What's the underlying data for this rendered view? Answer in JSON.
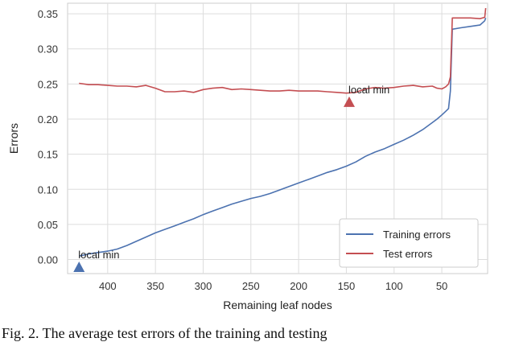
{
  "chart_data": {
    "type": "line",
    "xlabel": "Remaining leaf nodes",
    "ylabel": "Errors",
    "x_reversed": true,
    "xlim": [
      442,
      2
    ],
    "ylim": [
      -0.02,
      0.365
    ],
    "xticks": [
      400,
      350,
      300,
      250,
      200,
      150,
      100,
      50
    ],
    "yticks": [
      0.0,
      0.05,
      0.1,
      0.15,
      0.2,
      0.25,
      0.3,
      0.35
    ],
    "ytick_labels": [
      "0.00",
      "0.05",
      "0.10",
      "0.15",
      "0.20",
      "0.25",
      "0.30",
      "0.35"
    ],
    "grid": true,
    "legend_position": "bottom-right",
    "series": [
      {
        "name": "Training errors",
        "color": "#4c72b0",
        "x": [
          430,
          420,
          410,
          400,
          390,
          380,
          370,
          360,
          350,
          340,
          330,
          320,
          310,
          300,
          290,
          280,
          270,
          260,
          250,
          240,
          230,
          220,
          210,
          200,
          190,
          180,
          170,
          160,
          150,
          140,
          130,
          120,
          110,
          100,
          90,
          80,
          70,
          60,
          55,
          50,
          46,
          43,
          41,
          39,
          30,
          20,
          10,
          5,
          4
        ],
        "values": [
          0.005,
          0.008,
          0.01,
          0.012,
          0.015,
          0.02,
          0.026,
          0.032,
          0.038,
          0.043,
          0.048,
          0.053,
          0.058,
          0.064,
          0.069,
          0.074,
          0.079,
          0.083,
          0.087,
          0.09,
          0.094,
          0.099,
          0.104,
          0.109,
          0.114,
          0.119,
          0.124,
          0.128,
          0.133,
          0.139,
          0.147,
          0.153,
          0.158,
          0.164,
          0.17,
          0.177,
          0.185,
          0.195,
          0.2,
          0.206,
          0.211,
          0.215,
          0.24,
          0.328,
          0.33,
          0.332,
          0.334,
          0.34,
          0.344
        ]
      },
      {
        "name": "Test errors",
        "color": "#c44e52",
        "x": [
          430,
          420,
          410,
          400,
          390,
          380,
          370,
          360,
          350,
          340,
          330,
          320,
          310,
          300,
          290,
          280,
          270,
          260,
          250,
          240,
          230,
          220,
          210,
          200,
          190,
          180,
          170,
          160,
          150,
          140,
          130,
          120,
          110,
          100,
          90,
          80,
          70,
          60,
          55,
          50,
          46,
          43,
          41,
          39,
          30,
          20,
          10,
          5,
          4
        ],
        "values": [
          0.251,
          0.249,
          0.249,
          0.248,
          0.247,
          0.247,
          0.246,
          0.248,
          0.244,
          0.239,
          0.239,
          0.24,
          0.238,
          0.242,
          0.244,
          0.245,
          0.242,
          0.243,
          0.242,
          0.241,
          0.24,
          0.24,
          0.241,
          0.24,
          0.24,
          0.24,
          0.239,
          0.238,
          0.237,
          0.238,
          0.243,
          0.245,
          0.244,
          0.245,
          0.247,
          0.248,
          0.246,
          0.247,
          0.244,
          0.243,
          0.246,
          0.25,
          0.26,
          0.344,
          0.344,
          0.344,
          0.343,
          0.345,
          0.358
        ]
      }
    ],
    "annotations": [
      {
        "text": "local min",
        "x": 430,
        "y": -0.012,
        "series": "Training errors",
        "color": "#4c72b0"
      },
      {
        "text": "local min",
        "x": 147,
        "y": 0.223,
        "series": "Test errors",
        "color": "#c44e52"
      }
    ]
  },
  "caption": "Fig. 2. The average test errors of the training and testing"
}
